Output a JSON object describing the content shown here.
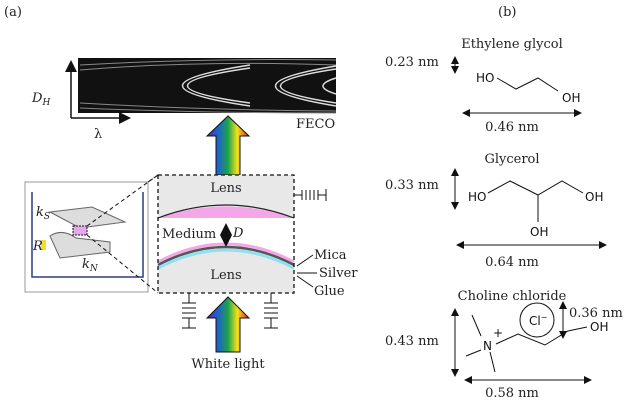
{
  "panel_a": {
    "label": "(a)",
    "feco_label": "FECO",
    "y_axis_label": "D",
    "y_axis_sub": "H",
    "x_axis_label": "λ",
    "lens_top": "Lens",
    "lens_bottom": "Lens",
    "medium": "Medium",
    "distance": "D",
    "layers": [
      "Mica",
      "Silver",
      "Glue"
    ],
    "white_light": "White light",
    "inset": {
      "ks": "k",
      "ks_sub": "S",
      "kn": "k",
      "kn_sub": "N",
      "r": "R"
    },
    "colors": {
      "mica": "#f4a6e8",
      "silver": "#555555",
      "glue": "#8fe0f0",
      "lens": "#e8e8e8"
    }
  },
  "panel_b": {
    "label": "(b)",
    "molecules": [
      {
        "name": "Ethylene glycol",
        "height": "0.23 nm",
        "width": "0.46 nm",
        "atoms": [
          "HO",
          "OH"
        ]
      },
      {
        "name": "Glycerol",
        "height": "0.33 nm",
        "width": "0.64 nm",
        "atoms": [
          "HO",
          "OH",
          "OH"
        ]
      },
      {
        "name": "Choline chloride",
        "height": "0.43 nm",
        "width": "0.58 nm",
        "ion_size": "0.36 nm",
        "ion": "Cl",
        "ion_charge": "−",
        "atoms": [
          "N",
          "+",
          "OH"
        ]
      }
    ]
  }
}
